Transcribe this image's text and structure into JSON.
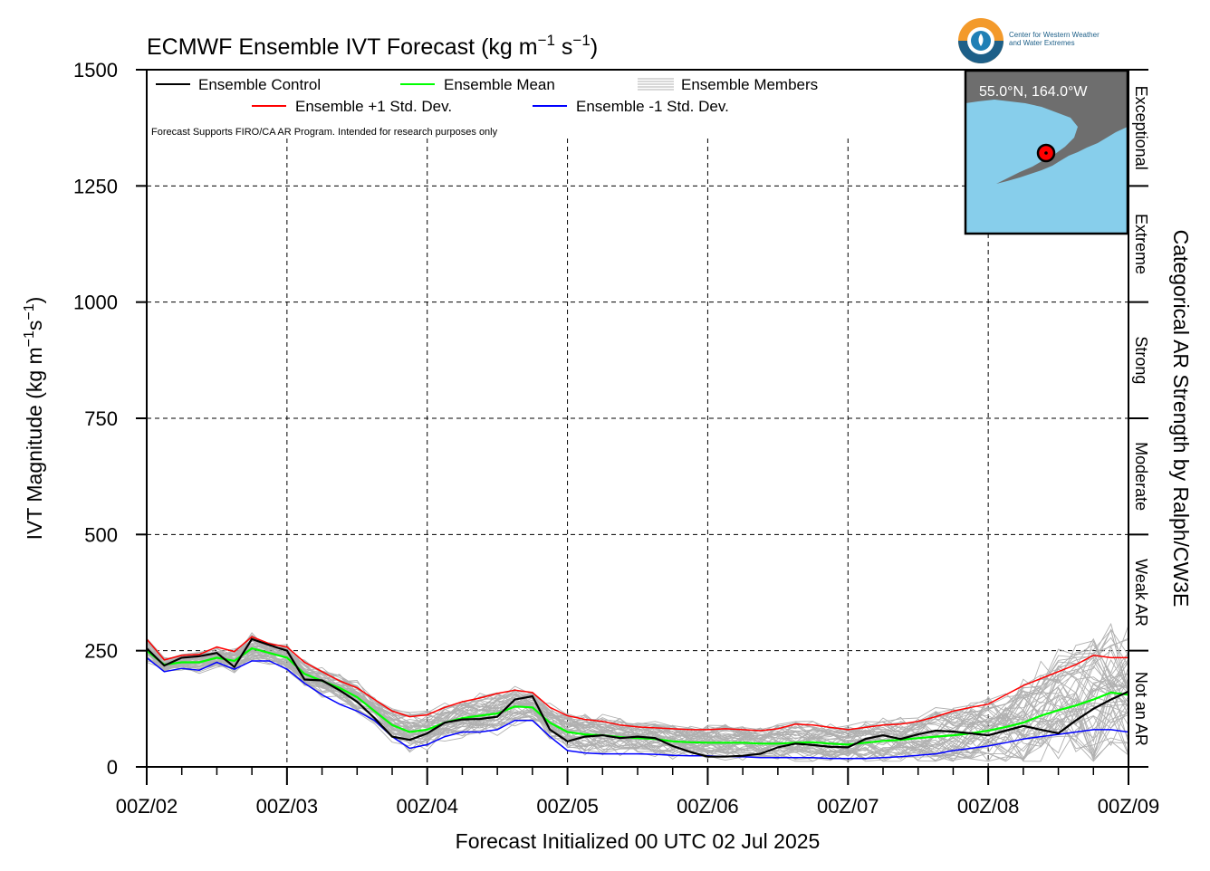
{
  "chart_data": {
    "type": "line",
    "title": "ECMWF Ensemble IVT Forecast (kg m",
    "title_sup1": "−1",
    "title_mid": " s",
    "title_sup2": "−1",
    "title_end": ")",
    "ylabel": "IVT Magnitude (kg m",
    "ylabel_sup1": "−1",
    "ylabel_mid": "s",
    "ylabel_sup2": "−1",
    "ylabel_end": ")",
    "xlabel": "Forecast Initialized 00 UTC 02 Jul 2025",
    "right_label": "Categorical AR Strength by Ralph/CW3E",
    "ylim": [
      0,
      1500
    ],
    "xlim": [
      0,
      168
    ],
    "yticks": [
      "0",
      "250",
      "500",
      "750",
      "1000",
      "1250",
      "1500"
    ],
    "xtick_labels": [
      "00Z/02",
      "00Z/03",
      "00Z/04",
      "00Z/05",
      "00Z/06",
      "00Z/07",
      "00Z/08",
      "00Z/09"
    ],
    "categories": [
      "Not an AR",
      "Weak AR",
      "Moderate",
      "Strong",
      "Extreme",
      "Exceptional"
    ],
    "note": "Forecast Supports FIRO/CA AR Program. Intended for research purposes only",
    "legend": {
      "control": "Ensemble Control",
      "mean": "Ensemble Mean",
      "members": "Ensemble Members",
      "plus": "Ensemble +1 Std. Dev.",
      "minus": "Ensemble -1 Std. Dev."
    },
    "colors": {
      "control": "#000000",
      "mean": "#00ff00",
      "plus": "#ff0000",
      "minus": "#0000ff",
      "members": "#b0b0b0",
      "ocean": "#87ceeb",
      "land": "#6e6e6e"
    },
    "series": [
      {
        "name": "Ensemble Control",
        "x": [
          0,
          3,
          6,
          9,
          12,
          15,
          18,
          21,
          24,
          27,
          30,
          33,
          36,
          39,
          42,
          45,
          48,
          51,
          54,
          57,
          60,
          63,
          66,
          69,
          72,
          75,
          78,
          81,
          84,
          87,
          90,
          93,
          96,
          99,
          102,
          105,
          108,
          111,
          114,
          117,
          120,
          123,
          126,
          129,
          132,
          135,
          138,
          141,
          144,
          147,
          150,
          153,
          156,
          159,
          162,
          165,
          168
        ],
        "values": [
          255,
          218,
          235,
          238,
          245,
          215,
          275,
          262,
          250,
          188,
          186,
          165,
          140,
          105,
          65,
          58,
          72,
          95,
          102,
          103,
          108,
          145,
          152,
          80,
          55,
          65,
          68,
          62,
          65,
          62,
          45,
          32,
          22,
          22,
          24,
          28,
          42,
          50,
          47,
          43,
          42,
          60,
          68,
          60,
          70,
          78,
          76,
          72,
          68,
          78,
          88,
          80,
          72,
          100,
          125,
          145,
          162
        ]
      },
      {
        "name": "Ensemble Mean",
        "x": [
          0,
          3,
          6,
          9,
          12,
          15,
          18,
          21,
          24,
          27,
          30,
          33,
          36,
          39,
          42,
          45,
          48,
          51,
          54,
          57,
          60,
          63,
          66,
          69,
          72,
          75,
          78,
          81,
          84,
          87,
          90,
          93,
          96,
          99,
          102,
          105,
          108,
          111,
          114,
          117,
          120,
          123,
          126,
          129,
          132,
          135,
          138,
          141,
          144,
          147,
          150,
          153,
          156,
          159,
          162,
          165,
          168
        ],
        "values": [
          250,
          220,
          225,
          225,
          235,
          228,
          255,
          245,
          235,
          200,
          185,
          170,
          150,
          120,
          90,
          75,
          80,
          95,
          105,
          110,
          115,
          130,
          128,
          95,
          75,
          70,
          68,
          64,
          62,
          60,
          55,
          53,
          52,
          52,
          52,
          50,
          50,
          52,
          53,
          50,
          48,
          52,
          56,
          58,
          62,
          65,
          68,
          72,
          78,
          86,
          95,
          110,
          122,
          132,
          145,
          160,
          155
        ]
      },
      {
        "name": "Ensemble +1 Std. Dev.",
        "x": [
          0,
          3,
          6,
          9,
          12,
          15,
          18,
          21,
          24,
          27,
          30,
          33,
          36,
          39,
          42,
          45,
          48,
          51,
          54,
          57,
          60,
          63,
          66,
          69,
          72,
          75,
          78,
          81,
          84,
          87,
          90,
          93,
          96,
          99,
          102,
          105,
          108,
          111,
          114,
          117,
          120,
          123,
          126,
          129,
          132,
          135,
          138,
          141,
          144,
          147,
          150,
          153,
          156,
          159,
          162,
          165,
          168
        ],
        "values": [
          275,
          230,
          240,
          242,
          258,
          248,
          280,
          265,
          258,
          225,
          205,
          185,
          170,
          145,
          120,
          108,
          112,
          128,
          140,
          148,
          158,
          165,
          160,
          128,
          110,
          102,
          98,
          90,
          86,
          84,
          82,
          80,
          80,
          82,
          80,
          78,
          82,
          92,
          90,
          85,
          80,
          85,
          90,
          92,
          98,
          108,
          120,
          128,
          135,
          155,
          175,
          190,
          205,
          220,
          240,
          235,
          235
        ]
      },
      {
        "name": "Ensemble -1 Std. Dev.",
        "x": [
          0,
          3,
          6,
          9,
          12,
          15,
          18,
          21,
          24,
          27,
          30,
          33,
          36,
          39,
          42,
          45,
          48,
          51,
          54,
          57,
          60,
          63,
          66,
          69,
          72,
          75,
          78,
          81,
          84,
          87,
          90,
          93,
          96,
          99,
          102,
          105,
          108,
          111,
          114,
          117,
          120,
          123,
          126,
          129,
          132,
          135,
          138,
          141,
          144,
          147,
          150,
          153,
          156,
          159,
          162,
          165,
          168
        ],
        "values": [
          235,
          205,
          212,
          208,
          225,
          210,
          228,
          228,
          210,
          180,
          155,
          135,
          120,
          100,
          65,
          40,
          48,
          65,
          75,
          75,
          80,
          100,
          100,
          65,
          35,
          30,
          28,
          28,
          28,
          27,
          25,
          24,
          24,
          22,
          22,
          20,
          20,
          20,
          20,
          18,
          18,
          18,
          20,
          22,
          25,
          28,
          35,
          40,
          45,
          52,
          60,
          65,
          70,
          75,
          80,
          80,
          75
        ]
      }
    ]
  },
  "inset": {
    "coords": "55.0°N, 164.0°W"
  },
  "logo": {
    "line1": "Center for Western Weather",
    "line2": "and Water Extremes"
  }
}
